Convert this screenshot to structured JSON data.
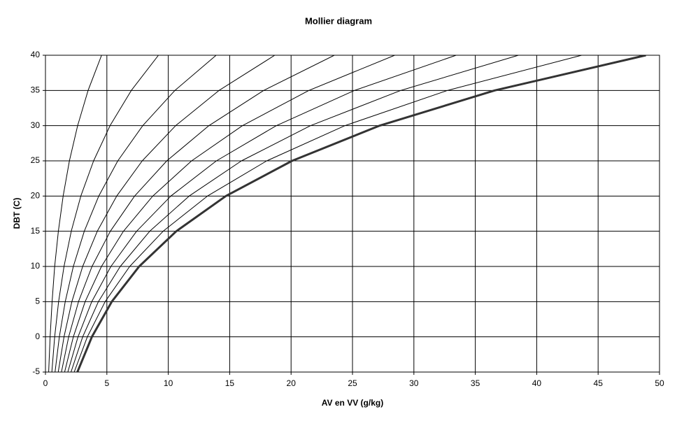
{
  "chart_data": {
    "type": "line",
    "title": "Mollier diagram",
    "x_label": "AV en VV (g/kg)",
    "y_label": "DBT (C)",
    "y": [
      -5,
      0,
      5,
      10,
      15,
      20,
      25,
      30,
      35,
      40
    ],
    "series": [
      {
        "color": "#000000",
        "width": 1,
        "x": [
          0.26,
          0.38,
          0.54,
          0.75,
          1.05,
          1.44,
          1.95,
          2.62,
          3.47,
          4.57
        ]
      },
      {
        "color": "#000000",
        "width": 1,
        "x": [
          0.52,
          0.75,
          1.07,
          1.51,
          2.1,
          2.88,
          3.92,
          5.26,
          6.99,
          9.2
        ]
      },
      {
        "color": "#000000",
        "width": 1,
        "x": [
          0.78,
          1.13,
          1.61,
          2.27,
          3.16,
          4.34,
          5.89,
          7.92,
          10.54,
          13.9
        ]
      },
      {
        "color": "#000000",
        "width": 1,
        "x": [
          1.04,
          1.51,
          2.15,
          3.03,
          4.22,
          5.8,
          7.88,
          10.6,
          14.13,
          18.67
        ]
      },
      {
        "color": "#000000",
        "width": 1,
        "x": [
          1.3,
          1.89,
          2.69,
          3.79,
          5.28,
          7.26,
          9.88,
          13.31,
          17.77,
          23.52
        ]
      },
      {
        "color": "#000000",
        "width": 1,
        "x": [
          1.56,
          2.27,
          3.23,
          4.56,
          6.35,
          8.74,
          11.9,
          16.04,
          21.45,
          28.44
        ]
      },
      {
        "color": "#000000",
        "width": 1,
        "x": [
          1.82,
          2.65,
          3.77,
          5.33,
          7.42,
          10.21,
          13.92,
          18.8,
          25.16,
          33.44
        ]
      },
      {
        "color": "#000000",
        "width": 1,
        "x": [
          2.08,
          3.03,
          4.31,
          6.09,
          8.49,
          11.7,
          15.96,
          21.58,
          28.93,
          38.51
        ]
      },
      {
        "color": "#000000",
        "width": 1,
        "x": [
          2.34,
          3.41,
          4.86,
          6.86,
          9.58,
          13.19,
          18.02,
          24.38,
          32.73,
          43.66
        ]
      },
      {
        "color": "#333333",
        "width": 3,
        "x": [
          2.6,
          3.78,
          5.4,
          7.63,
          10.65,
          14.69,
          20.08,
          27.21,
          36.58,
          48.89
        ]
      }
    ],
    "xlim": [
      0,
      50
    ],
    "ylim": [
      -5,
      40
    ],
    "xticks": [
      0,
      5,
      10,
      15,
      20,
      25,
      30,
      35,
      40,
      45,
      50
    ],
    "yticks": [
      -5,
      0,
      5,
      10,
      15,
      20,
      25,
      30,
      35,
      40
    ],
    "grid": true
  }
}
